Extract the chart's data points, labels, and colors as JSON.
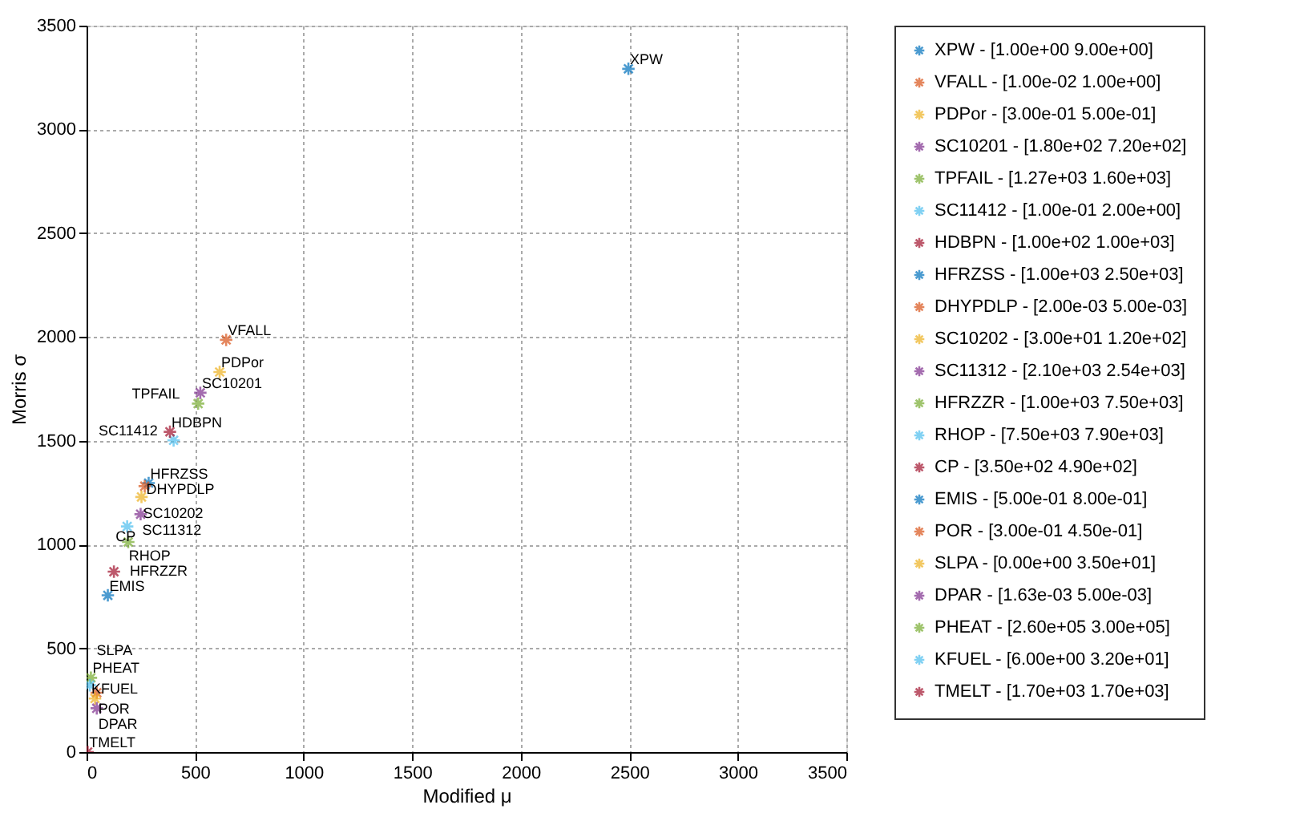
{
  "chart_data": {
    "type": "scatter",
    "xlabel": "Modified μ",
    "ylabel": "Morris σ",
    "xlim": [
      0,
      3500
    ],
    "ylim": [
      0,
      3500
    ],
    "xticks": [
      0,
      500,
      1000,
      1500,
      2000,
      2500,
      3000,
      3500
    ],
    "yticks": [
      0,
      500,
      1000,
      1500,
      2000,
      2500,
      3000,
      3500
    ],
    "grid": true,
    "legend": "right",
    "marker": "cross",
    "series": [
      {
        "name": "XPW - [1.00e+00 9.00e+00]",
        "color": "#0072bd",
        "x": [
          2496
        ],
        "values": [
          3292
        ]
      },
      {
        "name": "VFALL - [1.00e-02 1.00e+00]",
        "color": "#d95319",
        "x": [
          643
        ],
        "values": [
          1986
        ]
      },
      {
        "name": "PDPor - [3.00e-01 5.00e-01]",
        "color": "#edb120",
        "x": [
          613
        ],
        "values": [
          1831
        ]
      },
      {
        "name": "SC10201 - [1.80e+02 7.20e+02]",
        "color": "#7e2f8e",
        "x": [
          524
        ],
        "values": [
          1731
        ]
      },
      {
        "name": "TPFAIL - [1.27e+03 1.60e+03]",
        "color": "#77ac30",
        "x": [
          514
        ],
        "values": [
          1679
        ]
      },
      {
        "name": "SC11412 - [1.00e-01 2.00e+00]",
        "color": "#4dbeee",
        "x": [
          401
        ],
        "values": [
          1502
        ]
      },
      {
        "name": "HDBPN - [1.00e+02 1.00e+03]",
        "color": "#a2142f",
        "x": [
          384
        ],
        "values": [
          1543
        ]
      },
      {
        "name": "HFRZSS - [1.00e+03 2.50e+03]",
        "color": "#0072bd",
        "x": [
          286
        ],
        "values": [
          1296
        ]
      },
      {
        "name": "DHYPDLP - [2.00e-03 5.00e-03]",
        "color": "#d95319",
        "x": [
          268
        ],
        "values": [
          1281
        ]
      },
      {
        "name": "SC10202 - [3.00e+01 1.20e+02]",
        "color": "#edb120",
        "x": [
          253
        ],
        "values": [
          1229
        ]
      },
      {
        "name": "SC11312 - [2.10e+03 2.54e+03]",
        "color": "#7e2f8e",
        "x": [
          249
        ],
        "values": [
          1146
        ]
      },
      {
        "name": "HFRZZR - [1.00e+03 7.50e+03]",
        "color": "#77ac30",
        "x": [
          192
        ],
        "values": [
          1012
        ]
      },
      {
        "name": "RHOP - [7.50e+03 7.90e+03]",
        "color": "#4dbeee",
        "x": [
          187
        ],
        "values": [
          1087
        ]
      },
      {
        "name": "CP - [3.50e+02 4.90e+02]",
        "color": "#a2142f",
        "x": [
          126
        ],
        "values": [
          869
        ]
      },
      {
        "name": "EMIS - [5.00e-01 8.00e-01]",
        "color": "#0072bd",
        "x": [
          98
        ],
        "values": [
          755
        ]
      },
      {
        "name": "POR - [3.00e-01 4.50e-01]",
        "color": "#d95319",
        "x": [
          47
        ],
        "values": [
          286
        ]
      },
      {
        "name": "SLPA - [0.00e+00 3.50e+01]",
        "color": "#edb120",
        "x": [
          39
        ],
        "values": [
          258
        ]
      },
      {
        "name": "DPAR - [1.63e-03 5.00e-03]",
        "color": "#7e2f8e",
        "x": [
          47
        ],
        "values": [
          211
        ]
      },
      {
        "name": "PHEAT - [2.60e+05 3.00e+05]",
        "color": "#77ac30",
        "x": [
          20
        ],
        "values": [
          358
        ]
      },
      {
        "name": "KFUEL - [6.00e+00 3.20e+01]",
        "color": "#4dbeee",
        "x": [
          15
        ],
        "values": [
          322
        ]
      },
      {
        "name": "TMELT - [1.70e+03 1.70e+03]",
        "color": "#a2142f",
        "x": [
          5
        ],
        "values": [
          0
        ]
      }
    ],
    "annotations": [
      {
        "text": "XPW",
        "x": 2496,
        "y": 3292
      },
      {
        "text": "VFALL",
        "x": 643,
        "y": 1986
      },
      {
        "text": "PDPor",
        "x": 613,
        "y": 1831
      },
      {
        "text": "SC10201",
        "x": 524,
        "y": 1731
      },
      {
        "text": "TPFAIL",
        "x": 514,
        "y": 1679
      },
      {
        "text": "SC11412",
        "x": 401,
        "y": 1502
      },
      {
        "text": "HDBPN",
        "x": 384,
        "y": 1543
      },
      {
        "text": "HFRZSS",
        "x": 286,
        "y": 1296
      },
      {
        "text": "DHYPDLP",
        "x": 268,
        "y": 1281
      },
      {
        "text": "SC10202",
        "x": 253,
        "y": 1229
      },
      {
        "text": "SC11312",
        "x": 249,
        "y": 1146
      },
      {
        "text": "HFRZZR",
        "x": 192,
        "y": 1012
      },
      {
        "text": "RHOP",
        "x": 187,
        "y": 1087
      },
      {
        "text": "CP",
        "x": 126,
        "y": 869
      },
      {
        "text": "EMIS",
        "x": 98,
        "y": 755
      },
      {
        "text": "POR",
        "x": 47,
        "y": 286
      },
      {
        "text": "SLPA",
        "x": 39,
        "y": 258
      },
      {
        "text": "DPAR",
        "x": 47,
        "y": 211
      },
      {
        "text": "PHEAT",
        "x": 20,
        "y": 358
      },
      {
        "text": "KFUEL",
        "x": 15,
        "y": 322
      },
      {
        "text": "TMELT",
        "x": 5,
        "y": 0
      }
    ]
  }
}
